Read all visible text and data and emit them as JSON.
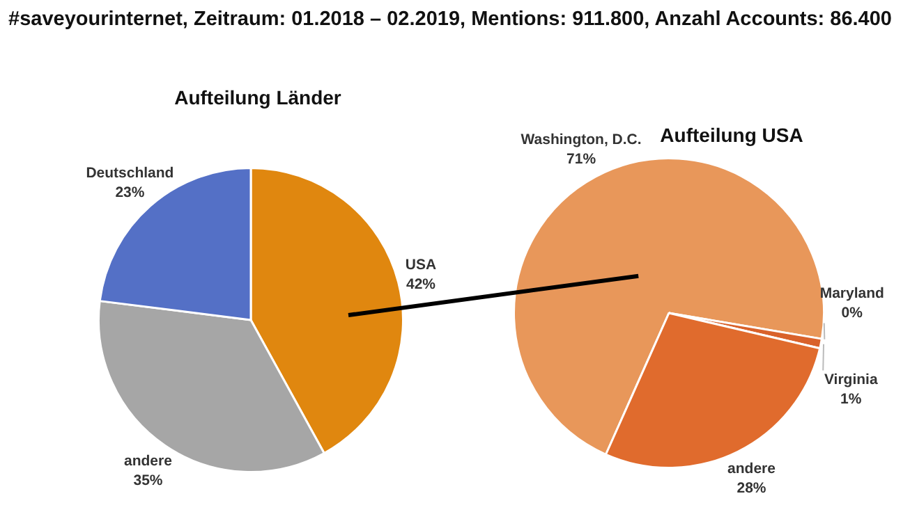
{
  "chart_data": [
    {
      "type": "pie",
      "title": "#saveyourinternet, Zeitraum: 01.2018 – 02.2019, Mentions: 911.800, Anzahl Accounts: 86.400",
      "subtitle": "Aufteilung Länder",
      "categories": [
        "USA",
        "andere",
        "Deutschland"
      ],
      "values": [
        42,
        35,
        23
      ],
      "colors": [
        "#e0870f",
        "#a6a6a6",
        "#5470c6"
      ],
      "value_labels": [
        "42%",
        "35%",
        "23%"
      ]
    },
    {
      "type": "pie",
      "title": "Aufteilung USA",
      "categories": [
        "Washington, D.C.",
        "Maryland",
        "Virginia",
        "andere"
      ],
      "values": [
        71,
        0,
        1,
        28
      ],
      "colors": [
        "#e8975a",
        "#c23a1e",
        "#d9622b",
        "#e06b2d"
      ],
      "value_labels": [
        "71%",
        "0%",
        "1%",
        "28%"
      ]
    }
  ]
}
